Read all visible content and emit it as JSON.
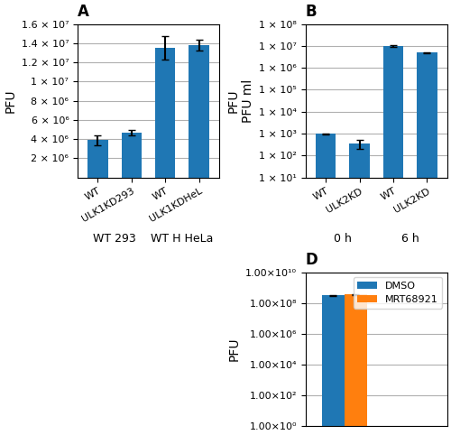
{
  "chart_data": [
    {
      "type": "bar",
      "title": "A",
      "categories": [
        "WT",
        "ULK1KD293",
        "WT",
        "ULK1KDHeL"
      ],
      "annotations": [
        "WT 293",
        "WT H HeLa"
      ],
      "values": [
        3900000,
        4700000,
        13500000,
        13800000
      ],
      "errors": [
        500000,
        300000,
        1200000,
        600000
      ],
      "y_label": "PFU",
      "ylim": [
        0,
        16000000
      ],
      "yticks": [
        {
          "value": 2000000,
          "label": "2 × 10⁶"
        },
        {
          "value": 4000000,
          "label": "4 × 10⁶"
        },
        {
          "value": 6000000,
          "label": "6 × 10⁶"
        },
        {
          "value": 8000000,
          "label": "8 × 10⁶"
        },
        {
          "value": 10000000,
          "label": "1 × 10⁷"
        },
        {
          "value": 12000000,
          "label": "1.2 × 10⁷"
        },
        {
          "value": 14000000,
          "label": "1.4 × 10⁷"
        },
        {
          "value": 16000000,
          "label": "1.6 × 10⁷"
        }
      ],
      "grid": true
    },
    {
      "type": "bar",
      "title": "B",
      "categories": [
        "WT",
        "ULK2KD",
        "WT",
        "ULK2KD"
      ],
      "annotations": [
        "0 h",
        "6 h"
      ],
      "values": [
        1000,
        350,
        10000000,
        5000000
      ],
      "errors": [
        50,
        150,
        1200000,
        250000
      ],
      "y_label": "PFU\nPFU ml",
      "log": "y",
      "ylim": [
        10,
        100000000
      ],
      "yticks": [
        {
          "value": 10,
          "label": "1 × 10¹"
        },
        {
          "value": 100,
          "label": "1 × 10²"
        },
        {
          "value": 1000,
          "label": "1 × 10³"
        },
        {
          "value": 10000,
          "label": "1 × 10⁴"
        },
        {
          "value": 100000,
          "label": "1 × 10⁵"
        },
        {
          "value": 1000000,
          "label": "1 × 10⁶"
        },
        {
          "value": 10000000,
          "label": "1 × 10⁷"
        },
        {
          "value": 100000000,
          "label": "1 × 10⁸"
        }
      ],
      "grid": true
    },
    {
      "type": "bar",
      "title": "D",
      "categories": [
        null
      ],
      "series": [
        {
          "name": "DMSO",
          "values": [
            300000000
          ],
          "errors": [
            20000000
          ]
        },
        {
          "name": "MRT68921",
          "values": [
            350000000
          ],
          "errors": [
            30000000
          ]
        }
      ],
      "y_label": "PFU",
      "log": "y",
      "ylim": [
        1,
        10000000000
      ],
      "yticks": [
        {
          "value": 1,
          "label": "1.00×10⁰"
        },
        {
          "value": 100,
          "label": "1.00×10²"
        },
        {
          "value": 10000,
          "label": "1.00×10⁴"
        },
        {
          "value": 1000000,
          "label": "1.00×10⁶"
        },
        {
          "value": 100000000,
          "label": "1.00×10⁸"
        },
        {
          "value": 10000000000,
          "label": "1.00×10¹⁰"
        }
      ],
      "tick_labels": "y",
      "legend": "upper right",
      "grid": true
    }
  ]
}
